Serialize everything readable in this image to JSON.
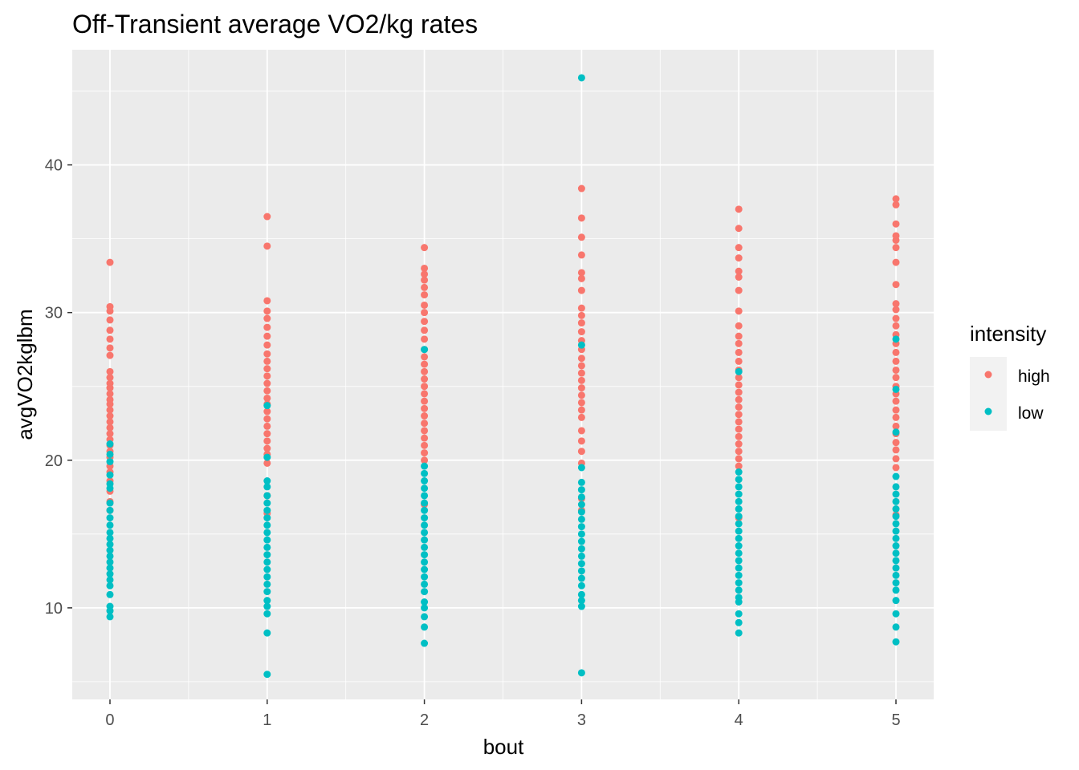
{
  "chart_data": {
    "type": "scatter",
    "title": "Off-Transient average VO2/kg rates",
    "xlabel": "bout",
    "ylabel": "avgVO2kglbm",
    "x_ticks": [
      0,
      1,
      2,
      3,
      4,
      5
    ],
    "y_ticks": [
      10,
      20,
      30,
      40
    ],
    "xlim": [
      -0.24,
      5.24
    ],
    "ylim": [
      3.8,
      47.8
    ],
    "grid": true,
    "legend": {
      "title": "intensity",
      "position": "right"
    },
    "series": [
      {
        "name": "high",
        "color": "#F8766D",
        "points": [
          [
            0,
            33.4
          ],
          [
            0,
            30.4
          ],
          [
            0,
            30.1
          ],
          [
            0,
            29.5
          ],
          [
            0,
            28.8
          ],
          [
            0,
            28.2
          ],
          [
            0,
            27.6
          ],
          [
            0,
            27.1
          ],
          [
            0,
            26.0
          ],
          [
            0,
            25.6
          ],
          [
            0,
            25.2
          ],
          [
            0,
            24.9
          ],
          [
            0,
            24.5
          ],
          [
            0,
            24.1
          ],
          [
            0,
            23.8
          ],
          [
            0,
            23.4
          ],
          [
            0,
            23.0
          ],
          [
            0,
            22.6
          ],
          [
            0,
            22.2
          ],
          [
            0,
            21.8
          ],
          [
            0,
            21.4
          ],
          [
            0,
            21.0
          ],
          [
            0,
            20.6
          ],
          [
            0,
            20.2
          ],
          [
            0,
            19.6
          ],
          [
            0,
            19.2
          ],
          [
            0,
            18.6
          ],
          [
            0,
            17.9
          ],
          [
            0,
            17.2
          ],
          [
            0,
            16.6
          ],
          [
            1,
            36.5
          ],
          [
            1,
            34.5
          ],
          [
            1,
            30.8
          ],
          [
            1,
            30.1
          ],
          [
            1,
            29.6
          ],
          [
            1,
            29.0
          ],
          [
            1,
            28.4
          ],
          [
            1,
            27.8
          ],
          [
            1,
            27.2
          ],
          [
            1,
            26.7
          ],
          [
            1,
            26.2
          ],
          [
            1,
            25.7
          ],
          [
            1,
            25.2
          ],
          [
            1,
            24.7
          ],
          [
            1,
            24.2
          ],
          [
            1,
            23.8
          ],
          [
            1,
            23.3
          ],
          [
            1,
            22.8
          ],
          [
            1,
            22.3
          ],
          [
            1,
            21.8
          ],
          [
            1,
            21.3
          ],
          [
            1,
            20.8
          ],
          [
            1,
            20.4
          ],
          [
            1,
            19.8
          ],
          [
            1,
            17.6
          ],
          [
            1,
            16.4
          ],
          [
            2,
            34.4
          ],
          [
            2,
            33.0
          ],
          [
            2,
            32.6
          ],
          [
            2,
            32.2
          ],
          [
            2,
            31.7
          ],
          [
            2,
            31.2
          ],
          [
            2,
            30.5
          ],
          [
            2,
            30.0
          ],
          [
            2,
            29.4
          ],
          [
            2,
            28.8
          ],
          [
            2,
            28.2
          ],
          [
            2,
            27.5
          ],
          [
            2,
            27.0
          ],
          [
            2,
            26.5
          ],
          [
            2,
            26.0
          ],
          [
            2,
            25.5
          ],
          [
            2,
            25.0
          ],
          [
            2,
            24.5
          ],
          [
            2,
            24.0
          ],
          [
            2,
            23.5
          ],
          [
            2,
            23.0
          ],
          [
            2,
            22.5
          ],
          [
            2,
            22.0
          ],
          [
            2,
            21.5
          ],
          [
            2,
            21.0
          ],
          [
            2,
            20.5
          ],
          [
            2,
            20.0
          ],
          [
            2,
            17.0
          ],
          [
            3,
            38.4
          ],
          [
            3,
            36.4
          ],
          [
            3,
            35.1
          ],
          [
            3,
            33.9
          ],
          [
            3,
            32.7
          ],
          [
            3,
            32.3
          ],
          [
            3,
            31.5
          ],
          [
            3,
            30.3
          ],
          [
            3,
            29.8
          ],
          [
            3,
            29.3
          ],
          [
            3,
            28.7
          ],
          [
            3,
            28.1
          ],
          [
            3,
            27.5
          ],
          [
            3,
            26.9
          ],
          [
            3,
            26.4
          ],
          [
            3,
            25.9
          ],
          [
            3,
            25.4
          ],
          [
            3,
            24.9
          ],
          [
            3,
            24.4
          ],
          [
            3,
            23.9
          ],
          [
            3,
            23.4
          ],
          [
            3,
            22.9
          ],
          [
            3,
            22.0
          ],
          [
            3,
            21.3
          ],
          [
            3,
            20.6
          ],
          [
            3,
            19.8
          ],
          [
            3,
            17.4
          ],
          [
            3,
            16.6
          ],
          [
            4,
            37.0
          ],
          [
            4,
            35.7
          ],
          [
            4,
            34.4
          ],
          [
            4,
            33.7
          ],
          [
            4,
            32.8
          ],
          [
            4,
            32.4
          ],
          [
            4,
            31.5
          ],
          [
            4,
            30.1
          ],
          [
            4,
            29.1
          ],
          [
            4,
            28.4
          ],
          [
            4,
            27.9
          ],
          [
            4,
            27.3
          ],
          [
            4,
            26.7
          ],
          [
            4,
            26.1
          ],
          [
            4,
            25.6
          ],
          [
            4,
            25.1
          ],
          [
            4,
            24.6
          ],
          [
            4,
            24.1
          ],
          [
            4,
            23.6
          ],
          [
            4,
            23.1
          ],
          [
            4,
            22.6
          ],
          [
            4,
            22.1
          ],
          [
            4,
            21.6
          ],
          [
            4,
            21.1
          ],
          [
            4,
            20.6
          ],
          [
            4,
            20.1
          ],
          [
            4,
            19.6
          ],
          [
            4,
            16.1
          ],
          [
            5,
            37.7
          ],
          [
            5,
            37.3
          ],
          [
            5,
            36.0
          ],
          [
            5,
            35.2
          ],
          [
            5,
            34.9
          ],
          [
            5,
            34.4
          ],
          [
            5,
            33.4
          ],
          [
            5,
            31.9
          ],
          [
            5,
            30.6
          ],
          [
            5,
            30.2
          ],
          [
            5,
            29.6
          ],
          [
            5,
            29.1
          ],
          [
            5,
            28.5
          ],
          [
            5,
            27.9
          ],
          [
            5,
            27.3
          ],
          [
            5,
            26.7
          ],
          [
            5,
            26.1
          ],
          [
            5,
            25.6
          ],
          [
            5,
            25.0
          ],
          [
            5,
            24.5
          ],
          [
            5,
            24.0
          ],
          [
            5,
            23.4
          ],
          [
            5,
            22.9
          ],
          [
            5,
            22.3
          ],
          [
            5,
            21.8
          ],
          [
            5,
            21.2
          ],
          [
            5,
            20.7
          ],
          [
            5,
            20.1
          ],
          [
            5,
            19.5
          ],
          [
            5,
            16.3
          ]
        ]
      },
      {
        "name": "low",
        "color": "#00BFC4",
        "points": [
          [
            0,
            21.1
          ],
          [
            0,
            20.4
          ],
          [
            0,
            19.9
          ],
          [
            0,
            19.0
          ],
          [
            0,
            18.4
          ],
          [
            0,
            18.1
          ],
          [
            0,
            17.1
          ],
          [
            0,
            16.6
          ],
          [
            0,
            16.1
          ],
          [
            0,
            15.6
          ],
          [
            0,
            15.1
          ],
          [
            0,
            14.7
          ],
          [
            0,
            14.3
          ],
          [
            0,
            13.9
          ],
          [
            0,
            13.5
          ],
          [
            0,
            13.1
          ],
          [
            0,
            12.7
          ],
          [
            0,
            12.3
          ],
          [
            0,
            11.9
          ],
          [
            0,
            11.5
          ],
          [
            0,
            10.9
          ],
          [
            0,
            10.1
          ],
          [
            0,
            9.8
          ],
          [
            0,
            9.4
          ],
          [
            1,
            23.7
          ],
          [
            1,
            20.2
          ],
          [
            1,
            18.6
          ],
          [
            1,
            18.2
          ],
          [
            1,
            17.6
          ],
          [
            1,
            17.1
          ],
          [
            1,
            16.6
          ],
          [
            1,
            16.1
          ],
          [
            1,
            15.6
          ],
          [
            1,
            15.1
          ],
          [
            1,
            14.6
          ],
          [
            1,
            14.1
          ],
          [
            1,
            13.6
          ],
          [
            1,
            13.1
          ],
          [
            1,
            12.6
          ],
          [
            1,
            12.1
          ],
          [
            1,
            11.6
          ],
          [
            1,
            11.1
          ],
          [
            1,
            10.5
          ],
          [
            1,
            10.1
          ],
          [
            1,
            9.6
          ],
          [
            1,
            8.3
          ],
          [
            1,
            5.5
          ],
          [
            2,
            27.5
          ],
          [
            2,
            19.6
          ],
          [
            2,
            19.1
          ],
          [
            2,
            18.6
          ],
          [
            2,
            18.1
          ],
          [
            2,
            17.6
          ],
          [
            2,
            17.1
          ],
          [
            2,
            16.6
          ],
          [
            2,
            16.1
          ],
          [
            2,
            15.6
          ],
          [
            2,
            15.1
          ],
          [
            2,
            14.6
          ],
          [
            2,
            14.1
          ],
          [
            2,
            13.6
          ],
          [
            2,
            13.1
          ],
          [
            2,
            12.6
          ],
          [
            2,
            12.1
          ],
          [
            2,
            11.6
          ],
          [
            2,
            11.1
          ],
          [
            2,
            10.4
          ],
          [
            2,
            10.0
          ],
          [
            2,
            9.4
          ],
          [
            2,
            8.7
          ],
          [
            2,
            7.6
          ],
          [
            3,
            45.9
          ],
          [
            3,
            27.8
          ],
          [
            3,
            19.5
          ],
          [
            3,
            18.5
          ],
          [
            3,
            18.0
          ],
          [
            3,
            17.5
          ],
          [
            3,
            17.0
          ],
          [
            3,
            16.5
          ],
          [
            3,
            16.0
          ],
          [
            3,
            15.5
          ],
          [
            3,
            15.0
          ],
          [
            3,
            14.5
          ],
          [
            3,
            14.0
          ],
          [
            3,
            13.5
          ],
          [
            3,
            13.0
          ],
          [
            3,
            12.5
          ],
          [
            3,
            12.0
          ],
          [
            3,
            11.5
          ],
          [
            3,
            10.9
          ],
          [
            3,
            10.5
          ],
          [
            3,
            10.1
          ],
          [
            3,
            5.6
          ],
          [
            4,
            26.0
          ],
          [
            4,
            19.2
          ],
          [
            4,
            18.7
          ],
          [
            4,
            18.2
          ],
          [
            4,
            17.7
          ],
          [
            4,
            17.2
          ],
          [
            4,
            16.7
          ],
          [
            4,
            16.2
          ],
          [
            4,
            15.7
          ],
          [
            4,
            15.2
          ],
          [
            4,
            14.7
          ],
          [
            4,
            14.2
          ],
          [
            4,
            13.7
          ],
          [
            4,
            13.2
          ],
          [
            4,
            12.7
          ],
          [
            4,
            12.2
          ],
          [
            4,
            11.7
          ],
          [
            4,
            11.2
          ],
          [
            4,
            10.7
          ],
          [
            4,
            10.4
          ],
          [
            4,
            9.6
          ],
          [
            4,
            9.0
          ],
          [
            4,
            8.3
          ],
          [
            5,
            28.2
          ],
          [
            5,
            24.8
          ],
          [
            5,
            21.9
          ],
          [
            5,
            18.9
          ],
          [
            5,
            18.2
          ],
          [
            5,
            17.7
          ],
          [
            5,
            17.2
          ],
          [
            5,
            16.7
          ],
          [
            5,
            16.2
          ],
          [
            5,
            15.7
          ],
          [
            5,
            15.2
          ],
          [
            5,
            14.7
          ],
          [
            5,
            14.2
          ],
          [
            5,
            13.7
          ],
          [
            5,
            13.2
          ],
          [
            5,
            12.7
          ],
          [
            5,
            12.2
          ],
          [
            5,
            11.7
          ],
          [
            5,
            11.2
          ],
          [
            5,
            10.5
          ],
          [
            5,
            9.6
          ],
          [
            5,
            8.7
          ],
          [
            5,
            7.7
          ]
        ]
      }
    ]
  }
}
